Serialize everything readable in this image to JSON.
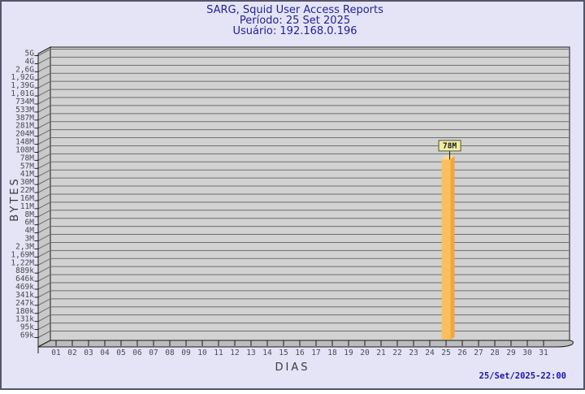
{
  "title": {
    "line1": "SARG, Squid User Access Reports",
    "line2": "Período: 25 Set 2025",
    "line3": "Usuário: 192.168.0.196"
  },
  "y_axis": {
    "label": "BYTES",
    "ticks": [
      "5G",
      "4G",
      "2,6G",
      "1,92G",
      "1,39G",
      "1,01G",
      "734M",
      "533M",
      "387M",
      "281M",
      "204M",
      "148M",
      "108M",
      "78M",
      "57M",
      "41M",
      "30M",
      "22M",
      "16M",
      "11M",
      "8M",
      "6M",
      "4M",
      "3M",
      "2,3M",
      "1,69M",
      "1,22M",
      "889k",
      "646k",
      "469k",
      "341k",
      "247k",
      "180k",
      "131k",
      "95k",
      "69k"
    ]
  },
  "x_axis": {
    "label": "DIAS",
    "ticks": [
      "01",
      "02",
      "03",
      "04",
      "05",
      "06",
      "07",
      "08",
      "09",
      "10",
      "11",
      "12",
      "13",
      "14",
      "15",
      "16",
      "17",
      "18",
      "19",
      "20",
      "21",
      "22",
      "23",
      "24",
      "25",
      "26",
      "27",
      "28",
      "29",
      "30",
      "31"
    ]
  },
  "bar": {
    "day": "25",
    "label": "78M"
  },
  "footer": {
    "timestamp": "25/Set/2025-22:00"
  },
  "colors": {
    "background": "#e4e4f6",
    "frame_border": "#55556a",
    "title_text": "#22229a",
    "plot_bg": "#d2d2d2",
    "wall_bg": "#c9c9c9",
    "bottom_wall_bg": "#bdbdbd",
    "gridline": "#6e6e6e",
    "axis": "#1a1a1a",
    "tick_text": "#4a4a4a",
    "bar_front": "#fcbf60",
    "bar_side": "#efa742",
    "bar_top": "#ffd98f",
    "bar_label_bg": "#f0eda6",
    "bar_label_border": "#55552a",
    "bar_label_text": "#1a1a1a",
    "timestamp_text": "#1717ad"
  },
  "chart_data": {
    "type": "bar",
    "title": "SARG, Squid User Access Reports",
    "subtitle": "Período: 25 Set 2025",
    "user": "Usuário: 192.168.0.196",
    "xlabel": "DIAS",
    "ylabel": "BYTES",
    "categories": [
      "01",
      "02",
      "03",
      "04",
      "05",
      "06",
      "07",
      "08",
      "09",
      "10",
      "11",
      "12",
      "13",
      "14",
      "15",
      "16",
      "17",
      "18",
      "19",
      "20",
      "21",
      "22",
      "23",
      "24",
      "25",
      "26",
      "27",
      "28",
      "29",
      "30",
      "31"
    ],
    "values": [
      0,
      0,
      0,
      0,
      0,
      0,
      0,
      0,
      0,
      0,
      0,
      0,
      0,
      0,
      0,
      0,
      0,
      0,
      0,
      0,
      0,
      0,
      0,
      0,
      78000000,
      0,
      0,
      0,
      0,
      0,
      0
    ],
    "value_labels": {
      "25": "78M"
    },
    "y_scale": "log",
    "y_tick_labels": [
      "5G",
      "4G",
      "2,6G",
      "1,92G",
      "1,39G",
      "1,01G",
      "734M",
      "533M",
      "387M",
      "281M",
      "204M",
      "148M",
      "108M",
      "78M",
      "57M",
      "41M",
      "30M",
      "22M",
      "16M",
      "11M",
      "8M",
      "6M",
      "4M",
      "3M",
      "2,3M",
      "1,69M",
      "1,22M",
      "889k",
      "646k",
      "469k",
      "341k",
      "247k",
      "180k",
      "131k",
      "95k",
      "69k"
    ],
    "ylim_labels": [
      "69k",
      "5G"
    ],
    "grid": true,
    "legend": false,
    "style": "3d-bar",
    "timestamp": "25/Set/2025-22:00"
  }
}
